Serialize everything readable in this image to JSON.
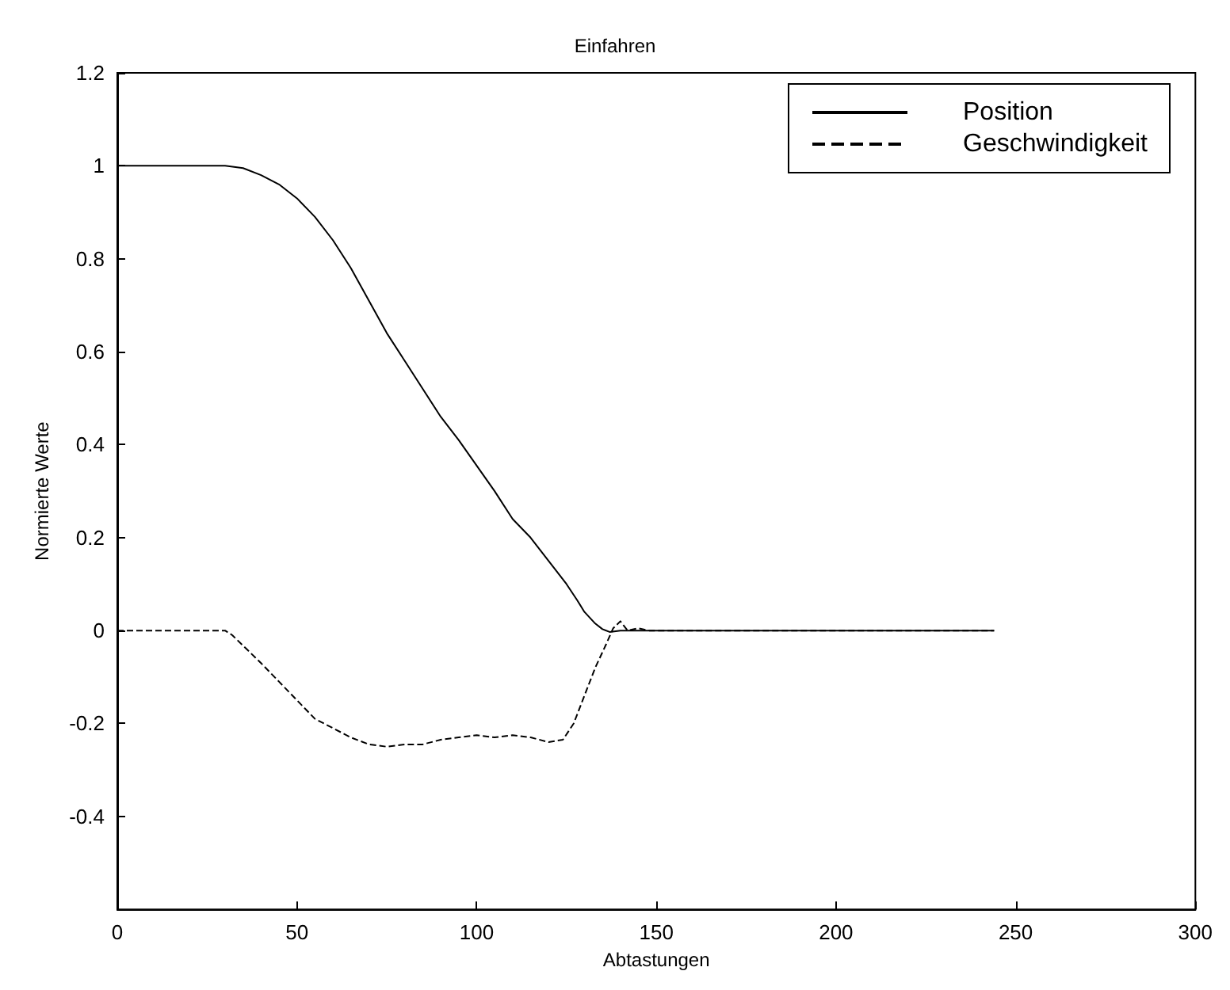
{
  "chart_data": {
    "type": "line",
    "title": "Einfahren",
    "xlabel": "Abtastungen",
    "ylabel": "Normierte Werte",
    "xlim": [
      0,
      300
    ],
    "xticks": [
      0,
      50,
      100,
      150,
      200,
      250,
      300
    ],
    "ylim": [
      -0.6,
      1.2
    ],
    "yticks": [
      {
        "value": -0.6,
        "label": null
      },
      -0.4,
      -0.2,
      0,
      0.2,
      0.4,
      0.6,
      0.8,
      1,
      1.2
    ],
    "grid": false,
    "legend": "top right",
    "marker": "none",
    "series": [
      {
        "name": "Position",
        "color": "#000000",
        "line_style": "solid",
        "x": [
          0,
          30,
          35,
          40,
          45,
          50,
          55,
          60,
          65,
          70,
          75,
          80,
          85,
          90,
          95,
          100,
          105,
          110,
          115,
          120,
          125,
          128,
          130,
          133,
          135,
          137,
          140,
          244
        ],
        "values": [
          1,
          1,
          0.995,
          0.98,
          0.96,
          0.93,
          0.89,
          0.84,
          0.78,
          0.71,
          0.64,
          0.58,
          0.52,
          0.46,
          0.41,
          0.355,
          0.3,
          0.24,
          0.2,
          0.15,
          0.1,
          0.065,
          0.04,
          0.015,
          0.003,
          -0.003,
          0,
          0
        ]
      },
      {
        "name": "Geschwindigkeit",
        "color": "#000000",
        "line_style": "dashed",
        "x": [
          0,
          30,
          32,
          40,
          45,
          50,
          55,
          60,
          65,
          70,
          75,
          80,
          85,
          90,
          95,
          100,
          105,
          110,
          115,
          120,
          124,
          127,
          130,
          133,
          136,
          138,
          140,
          142,
          145,
          148,
          244
        ],
        "values": [
          0,
          0,
          -0.01,
          -0.07,
          -0.11,
          -0.15,
          -0.19,
          -0.21,
          -0.23,
          -0.245,
          -0.25,
          -0.245,
          -0.245,
          -0.235,
          -0.23,
          -0.225,
          -0.23,
          -0.225,
          -0.23,
          -0.24,
          -0.235,
          -0.2,
          -0.14,
          -0.08,
          -0.03,
          0.005,
          0.02,
          0,
          0.005,
          0,
          0
        ]
      }
    ]
  }
}
